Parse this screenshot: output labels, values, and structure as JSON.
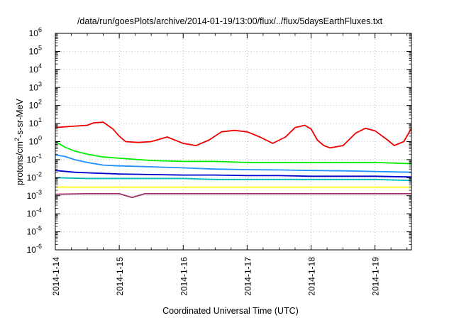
{
  "chart_data": {
    "type": "line",
    "title": "/data/run/goesPlots/archive/2014-01-19/13:00/flux/../flux/5daysEarthFluxes.txt",
    "xlabel": "Coordinated Universal Time (UTC)",
    "ylabel": "protons/cm2-s-sr-MeV",
    "yscale": "log",
    "ylim_exp": [
      -6,
      6
    ],
    "y_tick_exponents": [
      6,
      5,
      4,
      3,
      2,
      1,
      0,
      -1,
      -2,
      -3,
      -4,
      -5,
      -6
    ],
    "xlim_days": [
      0,
      5.57
    ],
    "x_ticks": [
      "2014-1-14",
      "2014-1-15",
      "2014-1-16",
      "2014-1-17",
      "2014-1-18",
      "2014-1-19"
    ],
    "grid": true,
    "colors": {
      "red": "#ee0000",
      "green": "#00ee00",
      "light_blue": "#1e90ff",
      "blue": "#0000cc",
      "cyan": "#00bbbb",
      "yellow": "#ffff00",
      "purple": "#993366"
    },
    "series": [
      {
        "color_key": "red",
        "x": [
          0,
          0.25,
          0.5,
          0.6,
          0.75,
          0.9,
          1.0,
          1.1,
          1.3,
          1.5,
          1.75,
          2.0,
          2.2,
          2.4,
          2.6,
          2.8,
          3.0,
          3.2,
          3.4,
          3.6,
          3.75,
          3.9,
          4.0,
          4.1,
          4.2,
          4.3,
          4.5,
          4.7,
          4.85,
          5.0,
          5.2,
          5.3,
          5.45,
          5.57
        ],
        "y": [
          6,
          7,
          8,
          11,
          12,
          5,
          2,
          1.0,
          0.9,
          1.0,
          1.8,
          0.8,
          0.6,
          1.2,
          3.5,
          4.2,
          3.5,
          1.8,
          0.8,
          1.8,
          6,
          8,
          5,
          1.2,
          0.6,
          0.45,
          0.6,
          3,
          5.5,
          4,
          1.2,
          0.6,
          1.0,
          5.5
        ]
      },
      {
        "color_key": "green",
        "x": [
          0,
          0.15,
          0.3,
          0.5,
          0.75,
          1.0,
          1.5,
          2.0,
          2.5,
          3.0,
          3.5,
          4.0,
          4.5,
          5.0,
          5.57
        ],
        "y": [
          1.0,
          0.5,
          0.3,
          0.2,
          0.14,
          0.12,
          0.09,
          0.08,
          0.08,
          0.07,
          0.07,
          0.07,
          0.07,
          0.07,
          0.06
        ]
      },
      {
        "color_key": "light_blue",
        "x": [
          0,
          0.15,
          0.3,
          0.5,
          0.75,
          1.0,
          1.5,
          2.0,
          2.5,
          3.0,
          3.5,
          4.0,
          4.5,
          5.0,
          5.57
        ],
        "y": [
          0.18,
          0.15,
          0.1,
          0.07,
          0.05,
          0.045,
          0.04,
          0.035,
          0.03,
          0.028,
          0.027,
          0.025,
          0.024,
          0.022,
          0.02
        ]
      },
      {
        "color_key": "blue",
        "x": [
          0,
          0.3,
          0.6,
          1.0,
          1.5,
          2.0,
          2.5,
          3.0,
          3.5,
          4.0,
          4.5,
          5.0,
          5.57
        ],
        "y": [
          0.025,
          0.02,
          0.018,
          0.016,
          0.015,
          0.014,
          0.014,
          0.013,
          0.013,
          0.012,
          0.012,
          0.012,
          0.011
        ]
      },
      {
        "color_key": "cyan",
        "x": [
          0,
          0.5,
          1.0,
          1.5,
          2.0,
          2.5,
          3.0,
          3.5,
          4.0,
          4.5,
          5.0,
          5.57
        ],
        "y": [
          0.01,
          0.009,
          0.009,
          0.009,
          0.009,
          0.008,
          0.008,
          0.008,
          0.008,
          0.008,
          0.008,
          0.007
        ]
      },
      {
        "color_key": "yellow",
        "x": [
          0,
          1.0,
          2.0,
          3.0,
          4.0,
          5.0,
          5.57
        ],
        "y": [
          0.003,
          0.003,
          0.003,
          0.003,
          0.003,
          0.003,
          0.003
        ]
      },
      {
        "color_key": "purple",
        "x": [
          0,
          0.5,
          1.0,
          1.2,
          1.4,
          2.0,
          3.0,
          4.0,
          5.0,
          5.57
        ],
        "y": [
          0.0012,
          0.0013,
          0.0013,
          0.0008,
          0.0013,
          0.0013,
          0.0013,
          0.0013,
          0.0013,
          0.0013
        ]
      }
    ]
  }
}
